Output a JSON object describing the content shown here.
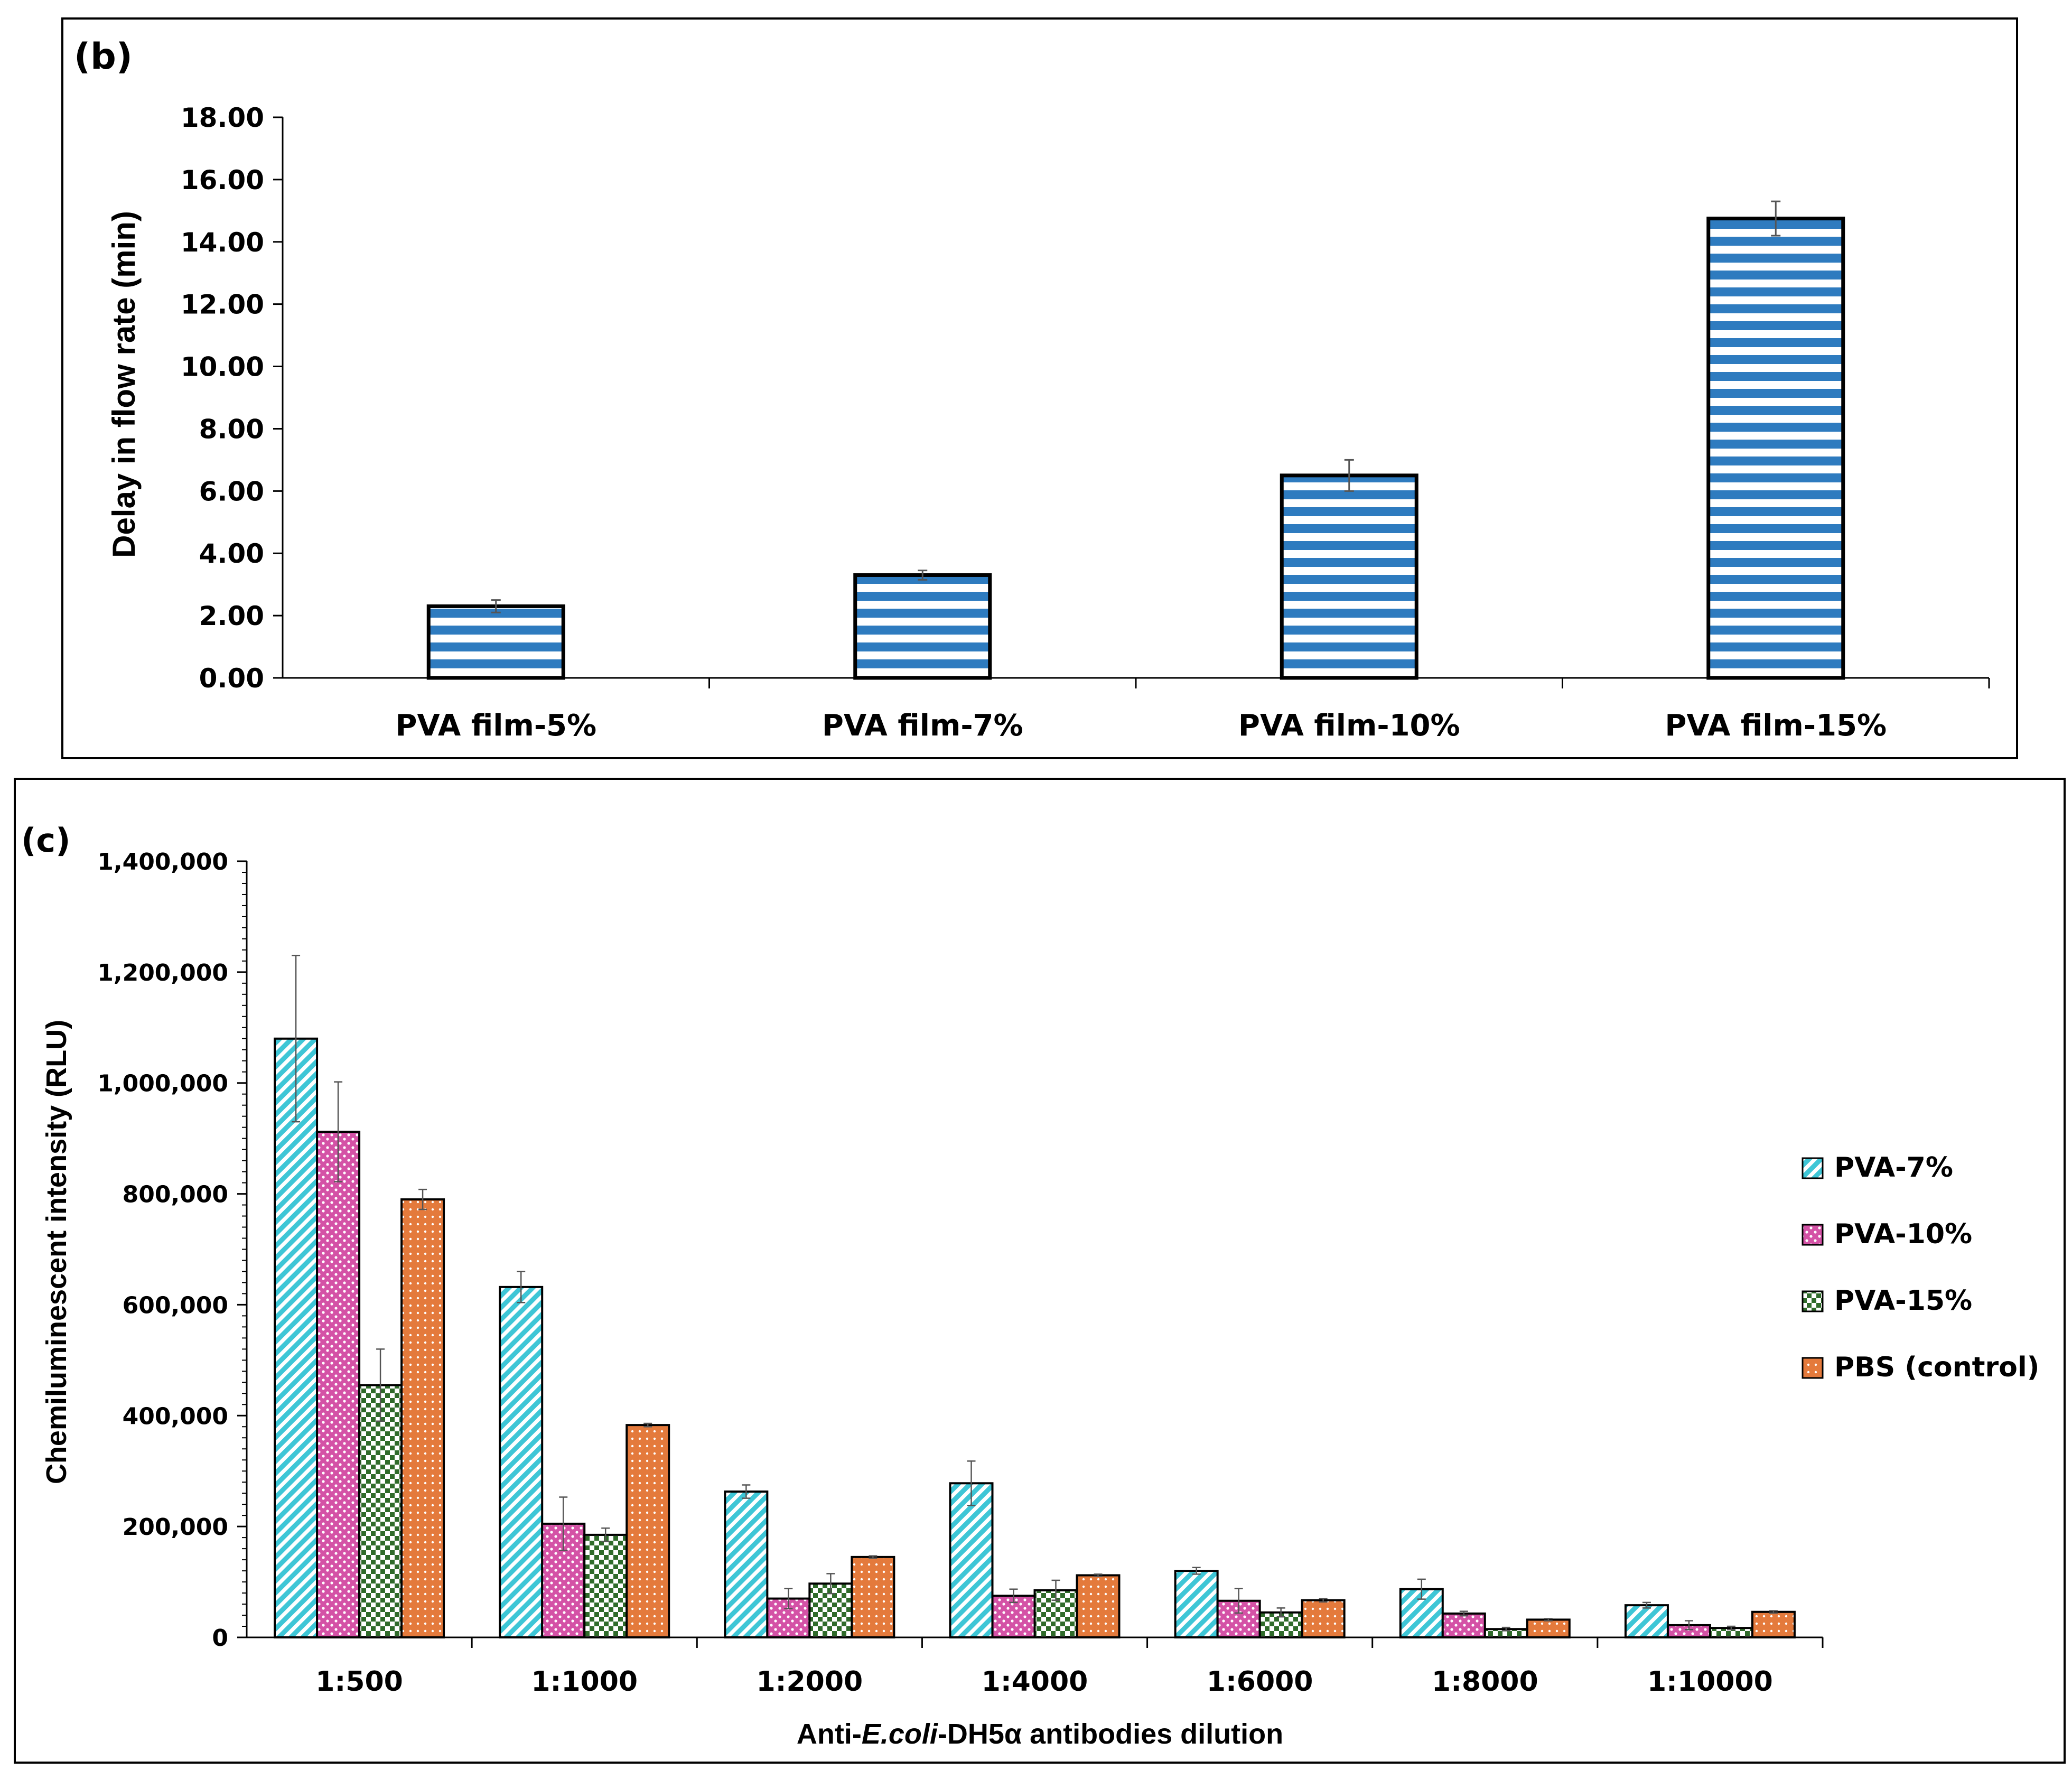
{
  "chart_data": [
    {
      "panel_label": "(b)",
      "type": "bar",
      "title": "",
      "xlabel": "",
      "ylabel": "Delay in flow rate (min)",
      "ylim": [
        0,
        18
      ],
      "ytick_step": 2,
      "ytick_labels": [
        "0.00",
        "2.00",
        "4.00",
        "6.00",
        "8.00",
        "10.00",
        "12.00",
        "14.00",
        "16.00",
        "18.00"
      ],
      "categories": [
        "PVA film-5%",
        "PVA film-7%",
        "PVA film-10%",
        "PVA film-15%"
      ],
      "values": [
        2.3,
        3.3,
        6.5,
        14.75
      ],
      "errors": [
        0.2,
        0.15,
        0.5,
        0.55
      ],
      "colors": {
        "fill": "#2e7bbf",
        "stripe": "#ffffff",
        "edge": "#000000"
      }
    },
    {
      "panel_label": "(c)",
      "type": "bar",
      "title": "",
      "xlabel_parts": [
        "Anti-",
        "E.coli",
        "-DH5α antibodies dilution"
      ],
      "ylabel": "Chemiluminescent intensity (RLU)",
      "ylim": [
        0,
        1400000
      ],
      "ytick_step": 200000,
      "ytick_labels": [
        "0",
        "200,000",
        "400,000",
        "600,000",
        "800,000",
        "1,000,000",
        "1,200,000",
        "1,400,000"
      ],
      "categories": [
        "1:500",
        "1:1000",
        "1:2000",
        "1:4000",
        "1:6000",
        "1:8000",
        "1:10000"
      ],
      "legend_position": "right",
      "series": [
        {
          "name": "PVA-7%",
          "color": "#3ec6d6",
          "pattern": "diagonal",
          "values": [
            1080000,
            632000,
            263000,
            278000,
            120000,
            87000,
            58000
          ],
          "errors": [
            150000,
            28000,
            12000,
            40000,
            6000,
            18000,
            5000
          ]
        },
        {
          "name": "PVA-10%",
          "color": "#d452a6",
          "pattern": "dots",
          "values": [
            912000,
            205000,
            70000,
            75000,
            66000,
            43000,
            22000
          ],
          "errors": [
            90000,
            48000,
            18000,
            12000,
            22000,
            4000,
            8000
          ]
        },
        {
          "name": "PVA-15%",
          "color": "#2f6b2a",
          "pattern": "checker",
          "values": [
            455000,
            185000,
            97000,
            85000,
            45000,
            15000,
            17000
          ],
          "errors": [
            65000,
            12000,
            18000,
            18000,
            8000,
            3000,
            3000
          ]
        },
        {
          "name": "PBS (control)",
          "color": "#e47a3c",
          "pattern": "grid",
          "values": [
            790000,
            383000,
            145000,
            112000,
            67000,
            32000,
            46000
          ],
          "errors": [
            18000,
            3000,
            2000,
            2000,
            3000,
            2000,
            2000
          ]
        }
      ]
    }
  ]
}
